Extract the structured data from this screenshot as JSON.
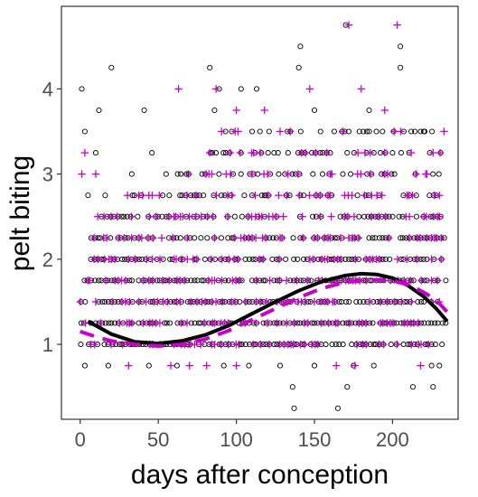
{
  "chart_data": {
    "type": "scatter",
    "title": "",
    "xlabel": "days after conception",
    "ylabel": "pelt biting",
    "xlim": [
      -12,
      242
    ],
    "ylim": [
      0.12,
      4.97
    ],
    "x_ticks": [
      0,
      50,
      100,
      150,
      200
    ],
    "y_ticks": [
      1,
      2,
      3,
      4
    ],
    "grid": false,
    "legend": "none",
    "colors": {
      "series_a": "#000000",
      "series_b": "#cc00cc",
      "axis": "#333333",
      "tick_text": "#4d4d4d"
    },
    "series": [
      {
        "marker": "open-circle",
        "color": "#000000",
        "points": [
          [
            1,
            4.0
          ],
          [
            20,
            4.25
          ],
          [
            83,
            4.25
          ],
          [
            89,
            4.0
          ],
          [
            103,
            4.0
          ],
          [
            113,
            4.0
          ],
          [
            12,
            3.75
          ],
          [
            41,
            3.75
          ],
          [
            86,
            3.75
          ],
          [
            170,
            4.75
          ],
          [
            141,
            4.5
          ],
          [
            205,
            4.5
          ],
          [
            136,
            0.5
          ],
          [
            165,
            0.25
          ],
          [
            137,
            0.25
          ],
          [
            171,
            0.5
          ],
          [
            213,
            0.5
          ],
          [
            188,
            0.75
          ],
          [
            3,
            3.5
          ],
          [
            10,
            3.25
          ],
          [
            46,
            3.25
          ],
          [
            55,
            3.0
          ],
          [
            68,
            3.0
          ],
          [
            33,
            3.0
          ],
          [
            5,
            2.75
          ],
          [
            16,
            2.75
          ],
          [
            98,
            3.0
          ],
          [
            118,
            2.75
          ],
          [
            3,
            0.75
          ],
          [
            18,
            0.75
          ],
          [
            44,
            0.75
          ],
          [
            62,
            0.75
          ],
          [
            92,
            0.75
          ],
          [
            108,
            0.75
          ],
          [
            128,
            0.75
          ],
          [
            150,
            0.75
          ],
          [
            175,
            0.75
          ],
          [
            230,
            0.75
          ],
          [
            226,
            0.5
          ],
          [
            225,
            0.75
          ],
          [
            140,
            4.25
          ],
          [
            205,
            4.25
          ],
          [
            150,
            3.75
          ],
          [
            185,
            3.75
          ],
          [
            220,
            3.5
          ],
          [
            200,
            3.25
          ]
        ]
      },
      {
        "marker": "plus",
        "color": "#cc00cc",
        "points": [
          [
            63,
            4.0
          ],
          [
            87,
            4.0
          ],
          [
            172,
            4.75
          ],
          [
            203,
            4.75
          ],
          [
            100,
            3.75
          ],
          [
            118,
            3.75
          ],
          [
            233,
            3.5
          ],
          [
            226,
            3.25
          ],
          [
            222,
            3.0
          ],
          [
            230,
            2.5
          ],
          [
            70,
            0.75
          ],
          [
            58,
            0.75
          ],
          [
            10,
            3.0
          ],
          [
            3,
            3.25
          ],
          [
            15,
            2.25
          ],
          [
            230,
            2.75
          ],
          [
            81,
            0.75
          ],
          [
            100,
            0.75
          ],
          [
            218,
            0.75
          ],
          [
            1,
            3.0
          ],
          [
            40,
            2.75
          ],
          [
            60,
            2.5
          ],
          [
            85,
            2.5
          ],
          [
            96,
            3.25
          ],
          [
            128,
            3.5
          ],
          [
            160,
            2.75
          ],
          [
            180,
            4.0
          ],
          [
            195,
            3.75
          ],
          [
            212,
            3.25
          ],
          [
            35,
            2.0
          ],
          [
            65,
            2.0
          ],
          [
            110,
            3.0
          ],
          [
            147,
            4.0
          ],
          [
            190,
            2.75
          ],
          [
            6,
            1.75
          ],
          [
            225,
            2.0
          ],
          [
            176,
            0.75
          ],
          [
            31,
            0.75
          ],
          [
            164,
            0.75
          ]
        ]
      }
    ],
    "lines": [
      {
        "style": "solid",
        "color": "#000000",
        "x": [
          5,
          20,
          35,
          50,
          65,
          80,
          95,
          110,
          125,
          140,
          155,
          170,
          180,
          190,
          200,
          210,
          220,
          228,
          235
        ],
        "y": [
          1.27,
          1.12,
          1.03,
          1.01,
          1.04,
          1.11,
          1.22,
          1.36,
          1.5,
          1.63,
          1.74,
          1.81,
          1.83,
          1.82,
          1.78,
          1.69,
          1.56,
          1.42,
          1.27
        ]
      },
      {
        "style": "dashed",
        "color": "#cc00cc",
        "x": [
          0,
          10,
          20,
          35,
          50,
          65,
          80,
          95,
          110,
          125,
          140,
          155,
          170,
          185,
          200,
          212,
          222,
          230,
          235
        ],
        "y": [
          1.15,
          1.09,
          1.04,
          1.0,
          0.98,
          1.0,
          1.06,
          1.16,
          1.29,
          1.42,
          1.55,
          1.66,
          1.73,
          1.76,
          1.75,
          1.69,
          1.59,
          1.48,
          1.38
        ]
      }
    ]
  }
}
